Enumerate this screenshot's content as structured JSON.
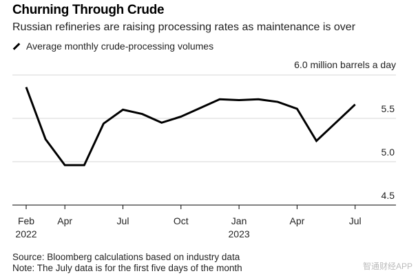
{
  "title": "Churning Through Crude",
  "subtitle": "Russian refineries are raising processing rates as maintenance is over",
  "legend": "Average monthly crude-processing volumes",
  "source": "Source: Bloomberg calculations based on industry data",
  "note": "Note: The July data is for the first five days of the month",
  "watermark": "智通财经APP",
  "chart_data": {
    "type": "line",
    "title": "Churning Through Crude",
    "ylabel": "6.0 million barrels a day",
    "ylim": [
      4.5,
      6.0
    ],
    "yticks": [
      {
        "value": 6.0,
        "label": ""
      },
      {
        "value": 5.5,
        "label": "5.5"
      },
      {
        "value": 5.0,
        "label": "5.0"
      },
      {
        "value": 4.5,
        "label": "4.5"
      }
    ],
    "x": [
      "2022-02",
      "2022-03",
      "2022-04",
      "2022-05",
      "2022-06",
      "2022-07",
      "2022-08",
      "2022-09",
      "2022-10",
      "2022-11",
      "2022-12",
      "2023-01",
      "2023-02",
      "2023-03",
      "2023-04",
      "2023-05",
      "2023-06",
      "2023-07"
    ],
    "xticks": [
      {
        "index": 0,
        "label": "Feb",
        "year": "2022"
      },
      {
        "index": 2,
        "label": "Apr",
        "year": ""
      },
      {
        "index": 5,
        "label": "Jul",
        "year": ""
      },
      {
        "index": 8,
        "label": "Oct",
        "year": ""
      },
      {
        "index": 11,
        "label": "Jan",
        "year": "2023"
      },
      {
        "index": 14,
        "label": "Apr",
        "year": ""
      },
      {
        "index": 17,
        "label": "Jul",
        "year": ""
      }
    ],
    "series": [
      {
        "name": "Average monthly crude-processing volumes",
        "color": "#000000",
        "values": [
          5.86,
          5.26,
          4.96,
          4.96,
          5.44,
          5.6,
          5.55,
          5.45,
          5.52,
          5.62,
          5.72,
          5.71,
          5.72,
          5.69,
          5.61,
          5.24,
          5.45,
          5.66
        ]
      }
    ],
    "grid": true
  }
}
